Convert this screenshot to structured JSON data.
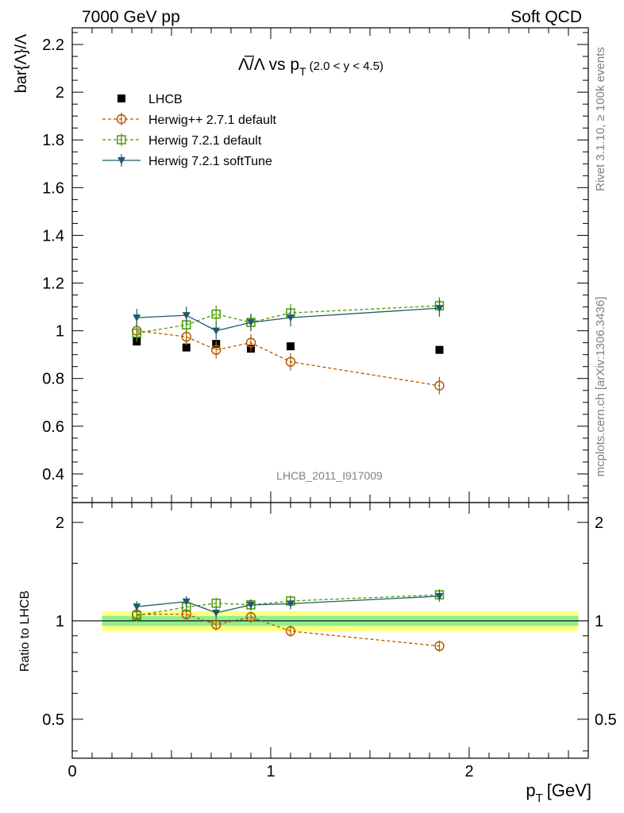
{
  "header": {
    "energy_label": "7000 GeV pp",
    "category_label": "Soft QCD"
  },
  "side_labels": {
    "rivet": "Rivet 3.1.10, ≥ 100k events",
    "mcplots": "mcplots.cern.ch [arXiv:1306.3436]"
  },
  "chart_data": [
    {
      "type": "scatter",
      "panel": "main",
      "title": {
        "main": "Λ̅/Λ vs p",
        "sub": "T",
        "cut": "(2.0 < y < 4.5)"
      },
      "analysis_label": "LHCB_2011_I917009",
      "ylabel": "bar{Λ}/Λ",
      "ylim": [
        0.28,
        2.27
      ],
      "xlim": [
        0,
        2.6
      ],
      "yticks": [
        "0.4",
        "0.6",
        "0.8",
        "1",
        "1.2",
        "1.4",
        "1.6",
        "1.8",
        "2",
        "2.2"
      ],
      "x": [
        0.325,
        0.575,
        0.725,
        0.9,
        1.1,
        1.85
      ],
      "legend_position": "top-left",
      "series": [
        {
          "name": "LHCB",
          "color": "#000000",
          "marker": "square-filled",
          "line": "none",
          "values": [
            0.955,
            0.93,
            0.945,
            0.925,
            0.935,
            0.92
          ]
        },
        {
          "name": "Herwig++ 2.7.1 default",
          "color": "#b35900",
          "marker": "circle-open",
          "line": "dashed",
          "values": [
            1.0,
            0.975,
            0.92,
            0.95,
            0.87,
            0.77
          ]
        },
        {
          "name": "Herwig 7.2.1 default",
          "color": "#4a9a00",
          "marker": "square-open",
          "line": "dashed",
          "values": [
            0.99,
            1.025,
            1.07,
            1.035,
            1.075,
            1.105
          ]
        },
        {
          "name": "Herwig 7.2.1 softTune",
          "color": "#1f5a6b",
          "marker": "triangle-down-filled",
          "line": "solid",
          "values": [
            1.055,
            1.065,
            1.0,
            1.035,
            1.055,
            1.095
          ]
        }
      ]
    },
    {
      "type": "scatter",
      "panel": "ratio",
      "ylabel": "Ratio to LHCB",
      "xlabel": {
        "main": "p",
        "sub": "T",
        "unit": "[GeV]"
      },
      "ylim": [
        0.38,
        2.3
      ],
      "scale": "log",
      "yticks": [
        "0.5",
        "1",
        "2"
      ],
      "xticks": [
        "0",
        "1",
        "2"
      ],
      "x": [
        0.325,
        0.575,
        0.725,
        0.9,
        1.1,
        1.85
      ],
      "band": {
        "inner": 0.035,
        "outer": 0.07,
        "x_range": [
          0.15,
          2.55
        ]
      },
      "series": [
        {
          "name": "Herwig++ 2.7.1 default",
          "color": "#b35900",
          "values": [
            1.047,
            1.048,
            0.974,
            1.027,
            0.93,
            0.837
          ]
        },
        {
          "name": "Herwig 7.2.1 default",
          "color": "#4a9a00",
          "values": [
            1.037,
            1.102,
            1.132,
            1.119,
            1.15,
            1.201
          ]
        },
        {
          "name": "Herwig 7.2.1 softTune",
          "color": "#1f5a6b",
          "values": [
            1.105,
            1.145,
            1.058,
            1.119,
            1.128,
            1.19
          ]
        }
      ]
    }
  ]
}
